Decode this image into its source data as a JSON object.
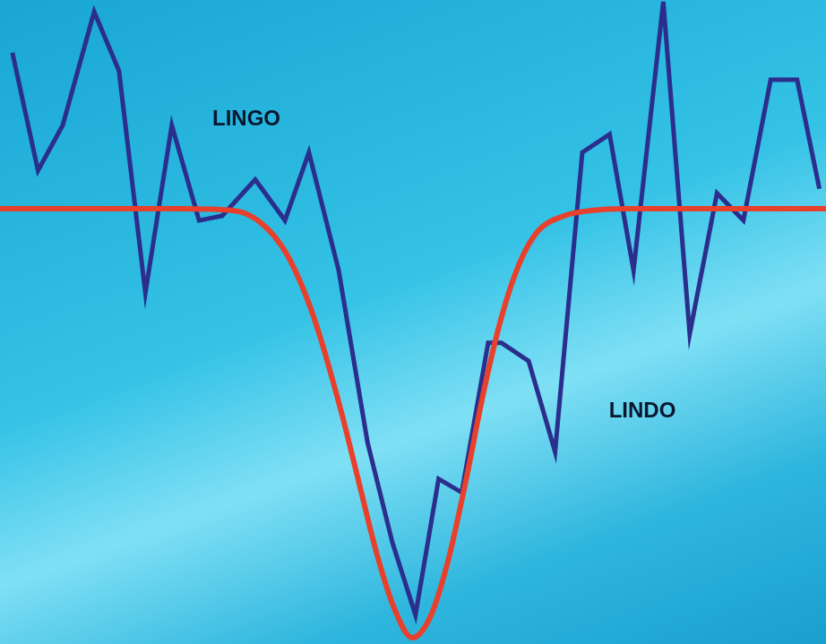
{
  "chart_data": {
    "type": "line",
    "annotations": [
      "LINGO",
      "LINDO"
    ],
    "xlim": [
      0,
      100
    ],
    "ylim": [
      -48,
      23
    ],
    "grid": false,
    "tick_labels": false,
    "series": [
      {
        "color": "#e8402a",
        "line_style": "smooth",
        "x": [
          0,
          10.8,
          21.7,
          28.2,
          31.5,
          34.7,
          38.0,
          41.2,
          43.4,
          45.6,
          47.7,
          49.9,
          52.1,
          54.2,
          56.4,
          58.6,
          60.7,
          62.9,
          65.1,
          68.3,
          71.6,
          75.9,
          86.8,
          100
        ],
        "values": [
          0,
          0,
          0,
          -0.2,
          -1.5,
          -5,
          -12,
          -22,
          -30,
          -38,
          -44,
          -47.3,
          -45,
          -39,
          -30,
          -20,
          -12,
          -6,
          -2.5,
          -0.8,
          -0.2,
          0,
          0,
          0
        ]
      },
      {
        "color": "#2b2e8c",
        "line_style": "solid",
        "x": [
          1.5,
          4.6,
          7.6,
          11.4,
          14.4,
          17.6,
          20.8,
          24.1,
          26.9,
          30.9,
          34.5,
          37.4,
          41.0,
          44.5,
          47.5,
          50.3,
          53.1,
          55.9,
          59.1,
          60.7,
          64.0,
          67.2,
          70.5,
          73.8,
          76.7,
          80.3,
          83.5,
          86.8,
          90.0,
          93.3,
          96.5,
          99.2
        ],
        "values": [
          17.2,
          4.2,
          9.2,
          21.7,
          15.2,
          -9.3,
          9.2,
          -1.3,
          -0.8,
          3.2,
          -1.3,
          6.2,
          -6.8,
          -25.8,
          -36.8,
          -44.8,
          -29.8,
          -31.3,
          -14.8,
          -14.8,
          -16.8,
          -26.8,
          6.2,
          8.2,
          -6.8,
          22.8,
          -13.8,
          1.7,
          -1.3,
          14.2,
          14.2,
          2.2
        ]
      }
    ]
  }
}
